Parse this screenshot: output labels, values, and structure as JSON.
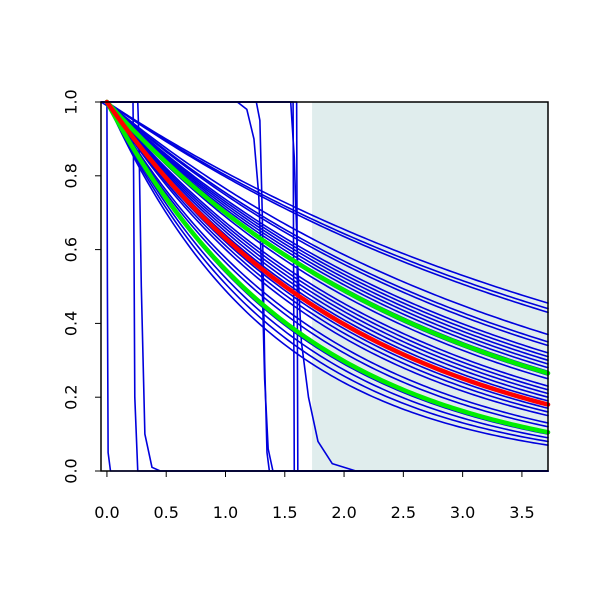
{
  "chart_data": {
    "type": "line",
    "title": "",
    "xlabel": "",
    "ylabel": "",
    "xlim": [
      -0.05,
      3.72
    ],
    "ylim": [
      0.0,
      1.0
    ],
    "x_ticks": [
      "0.0",
      "0.5",
      "1.0",
      "1.5",
      "2.0",
      "2.5",
      "3.0",
      "3.5"
    ],
    "x_tick_values": [
      0.0,
      0.5,
      1.0,
      1.5,
      2.0,
      2.5,
      3.0,
      3.5
    ],
    "y_ticks": [
      "0.0",
      "0.2",
      "0.4",
      "0.6",
      "0.8",
      "1.0"
    ],
    "y_tick_values": [
      0.0,
      0.2,
      0.4,
      0.6,
      0.8,
      1.0
    ],
    "grid": false,
    "legend": "none",
    "shaded_region": {
      "x_from": 1.73,
      "x_to": 3.72,
      "color": "#e0eded"
    },
    "colors": {
      "blue": "#0000dd",
      "red": "#ff0000",
      "green": "#00ee00",
      "axis": "#000000"
    },
    "series": [
      {
        "color": "blue",
        "width": 1.6,
        "points": [
          [
            0,
            1
          ],
          [
            3.72,
            0.455
          ]
        ]
      },
      {
        "color": "blue",
        "width": 1.6,
        "points": [
          [
            0,
            1
          ],
          [
            3.72,
            0.44
          ]
        ]
      },
      {
        "color": "blue",
        "width": 1.6,
        "points": [
          [
            0,
            1
          ],
          [
            3.72,
            0.43
          ]
        ]
      },
      {
        "color": "blue",
        "width": 1.6,
        "points": [
          [
            0,
            1
          ],
          [
            3.72,
            0.37
          ]
        ]
      },
      {
        "color": "blue",
        "width": 1.6,
        "points": [
          [
            0,
            1
          ],
          [
            3.72,
            0.35
          ]
        ]
      },
      {
        "color": "blue",
        "width": 1.6,
        "points": [
          [
            0,
            1
          ],
          [
            3.72,
            0.34
          ]
        ]
      },
      {
        "color": "blue",
        "width": 1.6,
        "points": [
          [
            0,
            1
          ],
          [
            3.72,
            0.32
          ]
        ]
      },
      {
        "color": "blue",
        "width": 1.6,
        "points": [
          [
            0,
            1
          ],
          [
            3.72,
            0.31
          ]
        ]
      },
      {
        "color": "blue",
        "width": 1.6,
        "points": [
          [
            0,
            1
          ],
          [
            3.72,
            0.3
          ]
        ]
      },
      {
        "color": "blue",
        "width": 1.6,
        "points": [
          [
            0,
            1
          ],
          [
            3.72,
            0.29
          ]
        ]
      },
      {
        "color": "blue",
        "width": 1.6,
        "points": [
          [
            0,
            1
          ],
          [
            3.72,
            0.28
          ]
        ]
      },
      {
        "color": "blue",
        "width": 1.6,
        "points": [
          [
            0,
            1
          ],
          [
            3.72,
            0.27
          ]
        ]
      },
      {
        "color": "blue",
        "width": 1.6,
        "points": [
          [
            0,
            1
          ],
          [
            3.72,
            0.26
          ]
        ]
      },
      {
        "color": "blue",
        "width": 1.6,
        "points": [
          [
            0,
            1
          ],
          [
            3.72,
            0.25
          ]
        ]
      },
      {
        "color": "blue",
        "width": 1.6,
        "points": [
          [
            0,
            1
          ],
          [
            3.72,
            0.23
          ]
        ]
      },
      {
        "color": "blue",
        "width": 1.6,
        "points": [
          [
            0,
            1
          ],
          [
            3.72,
            0.22
          ]
        ]
      },
      {
        "color": "blue",
        "width": 1.6,
        "points": [
          [
            0,
            1
          ],
          [
            3.72,
            0.21
          ]
        ]
      },
      {
        "color": "blue",
        "width": 1.6,
        "points": [
          [
            0,
            1
          ],
          [
            3.72,
            0.2
          ]
        ]
      },
      {
        "color": "blue",
        "width": 1.6,
        "points": [
          [
            0,
            1
          ],
          [
            3.72,
            0.19
          ]
        ]
      },
      {
        "color": "blue",
        "width": 1.6,
        "points": [
          [
            0,
            1
          ],
          [
            3.72,
            0.17
          ]
        ]
      },
      {
        "color": "blue",
        "width": 1.6,
        "points": [
          [
            0,
            1
          ],
          [
            3.72,
            0.16
          ]
        ]
      },
      {
        "color": "blue",
        "width": 1.6,
        "points": [
          [
            0,
            1
          ],
          [
            3.72,
            0.15
          ]
        ]
      },
      {
        "color": "blue",
        "width": 1.6,
        "points": [
          [
            0,
            1
          ],
          [
            3.72,
            0.13
          ]
        ]
      },
      {
        "color": "blue",
        "width": 1.6,
        "points": [
          [
            0,
            1
          ],
          [
            3.72,
            0.12
          ]
        ]
      },
      {
        "color": "blue",
        "width": 1.6,
        "points": [
          [
            0,
            1
          ],
          [
            3.72,
            0.1
          ]
        ]
      },
      {
        "color": "blue",
        "width": 1.6,
        "points": [
          [
            0,
            1
          ],
          [
            3.72,
            0.09
          ]
        ]
      },
      {
        "color": "blue",
        "width": 1.6,
        "points": [
          [
            0,
            1
          ],
          [
            3.72,
            0.08
          ]
        ]
      },
      {
        "color": "blue",
        "width": 1.6,
        "points": [
          [
            0,
            1
          ],
          [
            3.72,
            0.07
          ]
        ]
      },
      {
        "color": "blue",
        "width": 1.6,
        "points": [
          [
            -0.05,
            1
          ],
          [
            0,
            0.99
          ],
          [
            0.004,
            0.5
          ],
          [
            0.01,
            0.05
          ],
          [
            0.03,
            0.0
          ],
          [
            3.72,
            0.0
          ]
        ]
      },
      {
        "color": "blue",
        "width": 1.6,
        "points": [
          [
            -0.05,
            1
          ],
          [
            0.22,
            1
          ],
          [
            0.225,
            0.8
          ],
          [
            0.235,
            0.2
          ],
          [
            0.26,
            0.0
          ],
          [
            3.72,
            0.0
          ]
        ]
      },
      {
        "color": "blue",
        "width": 1.6,
        "points": [
          [
            -0.05,
            1
          ],
          [
            0.26,
            1
          ],
          [
            0.27,
            0.9
          ],
          [
            0.29,
            0.5
          ],
          [
            0.32,
            0.1
          ],
          [
            0.38,
            0.01
          ],
          [
            0.45,
            0.0
          ],
          [
            3.72,
            0.0
          ]
        ]
      },
      {
        "color": "blue",
        "width": 1.6,
        "points": [
          [
            -0.05,
            1
          ],
          [
            1.1,
            1
          ],
          [
            1.18,
            0.98
          ],
          [
            1.24,
            0.9
          ],
          [
            1.28,
            0.75
          ],
          [
            1.31,
            0.5
          ],
          [
            1.33,
            0.25
          ],
          [
            1.36,
            0.06
          ],
          [
            1.4,
            0.0
          ],
          [
            3.72,
            0.0
          ]
        ]
      },
      {
        "color": "blue",
        "width": 1.6,
        "points": [
          [
            -0.05,
            1
          ],
          [
            1.26,
            1
          ],
          [
            1.29,
            0.95
          ],
          [
            1.31,
            0.7
          ],
          [
            1.33,
            0.3
          ],
          [
            1.35,
            0.05
          ],
          [
            1.37,
            0.0
          ],
          [
            3.72,
            0.0
          ]
        ]
      },
      {
        "color": "blue",
        "width": 1.6,
        "points": [
          [
            -0.05,
            1
          ],
          [
            1.57,
            1
          ],
          [
            1.575,
            0.5
          ],
          [
            1.58,
            0.0
          ],
          [
            3.72,
            0.0
          ]
        ]
      },
      {
        "color": "blue",
        "width": 1.6,
        "points": [
          [
            -0.05,
            1
          ],
          [
            1.6,
            1
          ],
          [
            1.605,
            0.5
          ],
          [
            1.61,
            0.0
          ],
          [
            3.72,
            0.0
          ]
        ]
      },
      {
        "color": "blue",
        "width": 1.6,
        "points": [
          [
            -0.05,
            1
          ],
          [
            1.55,
            1
          ],
          [
            1.58,
            0.85
          ],
          [
            1.61,
            0.55
          ],
          [
            1.64,
            0.35
          ],
          [
            1.7,
            0.2
          ],
          [
            1.78,
            0.08
          ],
          [
            1.9,
            0.02
          ],
          [
            2.1,
            0.0
          ],
          [
            3.72,
            0.0
          ]
        ]
      },
      {
        "color": "green",
        "width": 4.5,
        "points": [
          [
            0,
            1
          ],
          [
            3.72,
            0.265
          ]
        ]
      },
      {
        "color": "green",
        "width": 4.5,
        "points": [
          [
            0,
            1
          ],
          [
            3.72,
            0.105
          ]
        ]
      },
      {
        "color": "red",
        "width": 4.5,
        "points": [
          [
            0,
            1
          ],
          [
            3.72,
            0.18
          ]
        ]
      }
    ]
  }
}
